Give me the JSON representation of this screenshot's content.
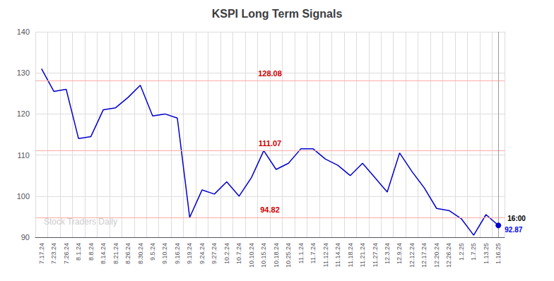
{
  "chart_data": {
    "type": "line",
    "title": "KSPI Long Term Signals",
    "categories": [
      "7.17.24",
      "7.23.24",
      "7.26.24",
      "8.1.24",
      "8.8.24",
      "8.14.24",
      "8.21.24",
      "8.26.24",
      "8.30.24",
      "9.5.24",
      "9.10.24",
      "9.16.24",
      "9.19.24",
      "9.24.24",
      "9.27.24",
      "10.2.24",
      "10.7.24",
      "10.10.24",
      "10.15.24",
      "10.18.24",
      "10.25.24",
      "11.1.24",
      "11.7.24",
      "11.12.24",
      "11.14.24",
      "11.18.24",
      "11.21.24",
      "11.27.24",
      "12.3.24",
      "12.9.24",
      "12.12.24",
      "12.17.24",
      "12.20.24",
      "12.26.24",
      "1.2.25",
      "1.7.25",
      "1.13.25",
      "1.16.25"
    ],
    "values": [
      131.0,
      125.5,
      126.0,
      114.0,
      114.5,
      121.0,
      121.5,
      124.0,
      127.0,
      119.5,
      120.0,
      119.0,
      94.82,
      101.5,
      100.5,
      103.5,
      100.0,
      104.5,
      111.07,
      106.5,
      108.0,
      111.5,
      111.5,
      109.0,
      107.5,
      105.0,
      108.0,
      104.5,
      101.0,
      110.5,
      106.0,
      102.0,
      97.0,
      96.5,
      94.5,
      90.5,
      95.5,
      92.87
    ],
    "color": "#0000cc",
    "reference_lines": {
      "values": [
        128.08,
        111.07,
        94.82
      ],
      "labels": [
        "128.08",
        "111.07",
        "94.82"
      ],
      "color": "#ffaaaa"
    },
    "end_labels": [
      {
        "text": "16:00",
        "color": "#000000"
      },
      {
        "text": "92.87",
        "color": "#0000ff"
      }
    ],
    "watermark": {
      "text": "Stock Traders Daily",
      "color": "#cccccc"
    },
    "ylim": [
      90,
      140
    ],
    "yticks": [
      90,
      100,
      110,
      120,
      130,
      140
    ],
    "grid": true
  }
}
